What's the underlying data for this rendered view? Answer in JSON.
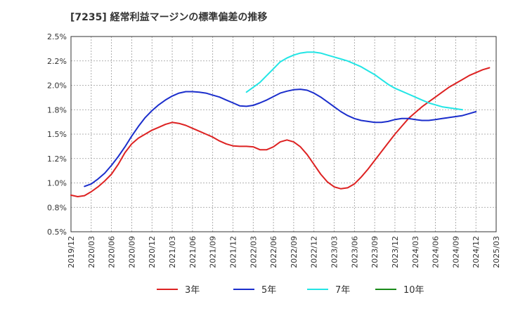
{
  "chart_data": {
    "type": "line",
    "title": "[7235]  経常利益マージンの標準偏差の推移",
    "xlabel": "",
    "ylabel": "",
    "ylim": [
      0.005,
      0.025
    ],
    "y_ticks": [
      "0.5%",
      "0.8%",
      "1.0%",
      "1.2%",
      "1.5%",
      "1.8%",
      "2.0%",
      "2.2%",
      "2.5%"
    ],
    "x_ticks": [
      "2019/12",
      "2020/03",
      "2020/06",
      "2020/09",
      "2020/12",
      "2021/03",
      "2021/06",
      "2021/09",
      "2021/12",
      "2022/03",
      "2022/06",
      "2022/09",
      "2022/12",
      "2023/03",
      "2023/06",
      "2023/09",
      "2023/12",
      "2024/03",
      "2024/06",
      "2024/09",
      "2024/12",
      "2025/03"
    ],
    "grid": true,
    "legend_position": "bottom",
    "series": [
      {
        "name": "3年",
        "color": "#dd2222",
        "start": "2019/12",
        "values": [
          0.00875,
          0.0086,
          0.0087,
          0.0091,
          0.0096,
          0.0102,
          0.0109,
          0.0119,
          0.0131,
          0.014,
          0.0146,
          0.015,
          0.0154,
          0.0157,
          0.016,
          0.0162,
          0.0161,
          0.0159,
          0.0156,
          0.0153,
          0.015,
          0.0147,
          0.0143,
          0.014,
          0.0138,
          0.01375,
          0.01375,
          0.0137,
          0.0134,
          0.0134,
          0.0137,
          0.0142,
          0.0144,
          0.0142,
          0.0137,
          0.0129,
          0.0119,
          0.0109,
          0.0101,
          0.0096,
          0.0094,
          0.0095,
          0.0099,
          0.0106,
          0.0114,
          0.0123,
          0.0132,
          0.0141,
          0.015,
          0.0158,
          0.0166,
          0.0172,
          0.0178,
          0.0183,
          0.0188,
          0.0193,
          0.0198,
          0.0202,
          0.0206,
          0.021,
          0.0213,
          0.0216,
          0.0218
        ]
      },
      {
        "name": "5年",
        "color": "#1b2ecc",
        "start": "2020/02",
        "values": [
          0.00965,
          0.0099,
          0.0104,
          0.011,
          0.0118,
          0.0127,
          0.0137,
          0.0148,
          0.0158,
          0.0167,
          0.0174,
          0.018,
          0.0185,
          0.0189,
          0.0192,
          0.01935,
          0.01935,
          0.0193,
          0.0192,
          0.019,
          0.0188,
          0.0185,
          0.0182,
          0.0179,
          0.01785,
          0.01795,
          0.0182,
          0.0185,
          0.01885,
          0.0192,
          0.0194,
          0.01955,
          0.0196,
          0.0195,
          0.0192,
          0.0188,
          0.0183,
          0.0178,
          0.0173,
          0.0169,
          0.0166,
          0.0164,
          0.0163,
          0.0162,
          0.0162,
          0.0163,
          0.0165,
          0.0166,
          0.0166,
          0.0165,
          0.0164,
          0.0164,
          0.0165,
          0.0166,
          0.0167,
          0.0168,
          0.0169,
          0.0171,
          0.0173
        ]
      },
      {
        "name": "7年",
        "color": "#22e5e5",
        "start": "2022/02",
        "values": [
          0.0193,
          0.0198,
          0.0203,
          0.021,
          0.0217,
          0.0224,
          0.0228,
          0.0231,
          0.0233,
          0.0234,
          0.0234,
          0.0233,
          0.0231,
          0.0229,
          0.0227,
          0.0225,
          0.0222,
          0.0219,
          0.0215,
          0.0211,
          0.0206,
          0.0201,
          0.0197,
          0.0194,
          0.0191,
          0.0188,
          0.0185,
          0.0182,
          0.018,
          0.0178,
          0.0177,
          0.0176,
          0.0175
        ]
      },
      {
        "name": "10年",
        "color": "#1a8a1a",
        "start": "",
        "values": []
      }
    ]
  }
}
